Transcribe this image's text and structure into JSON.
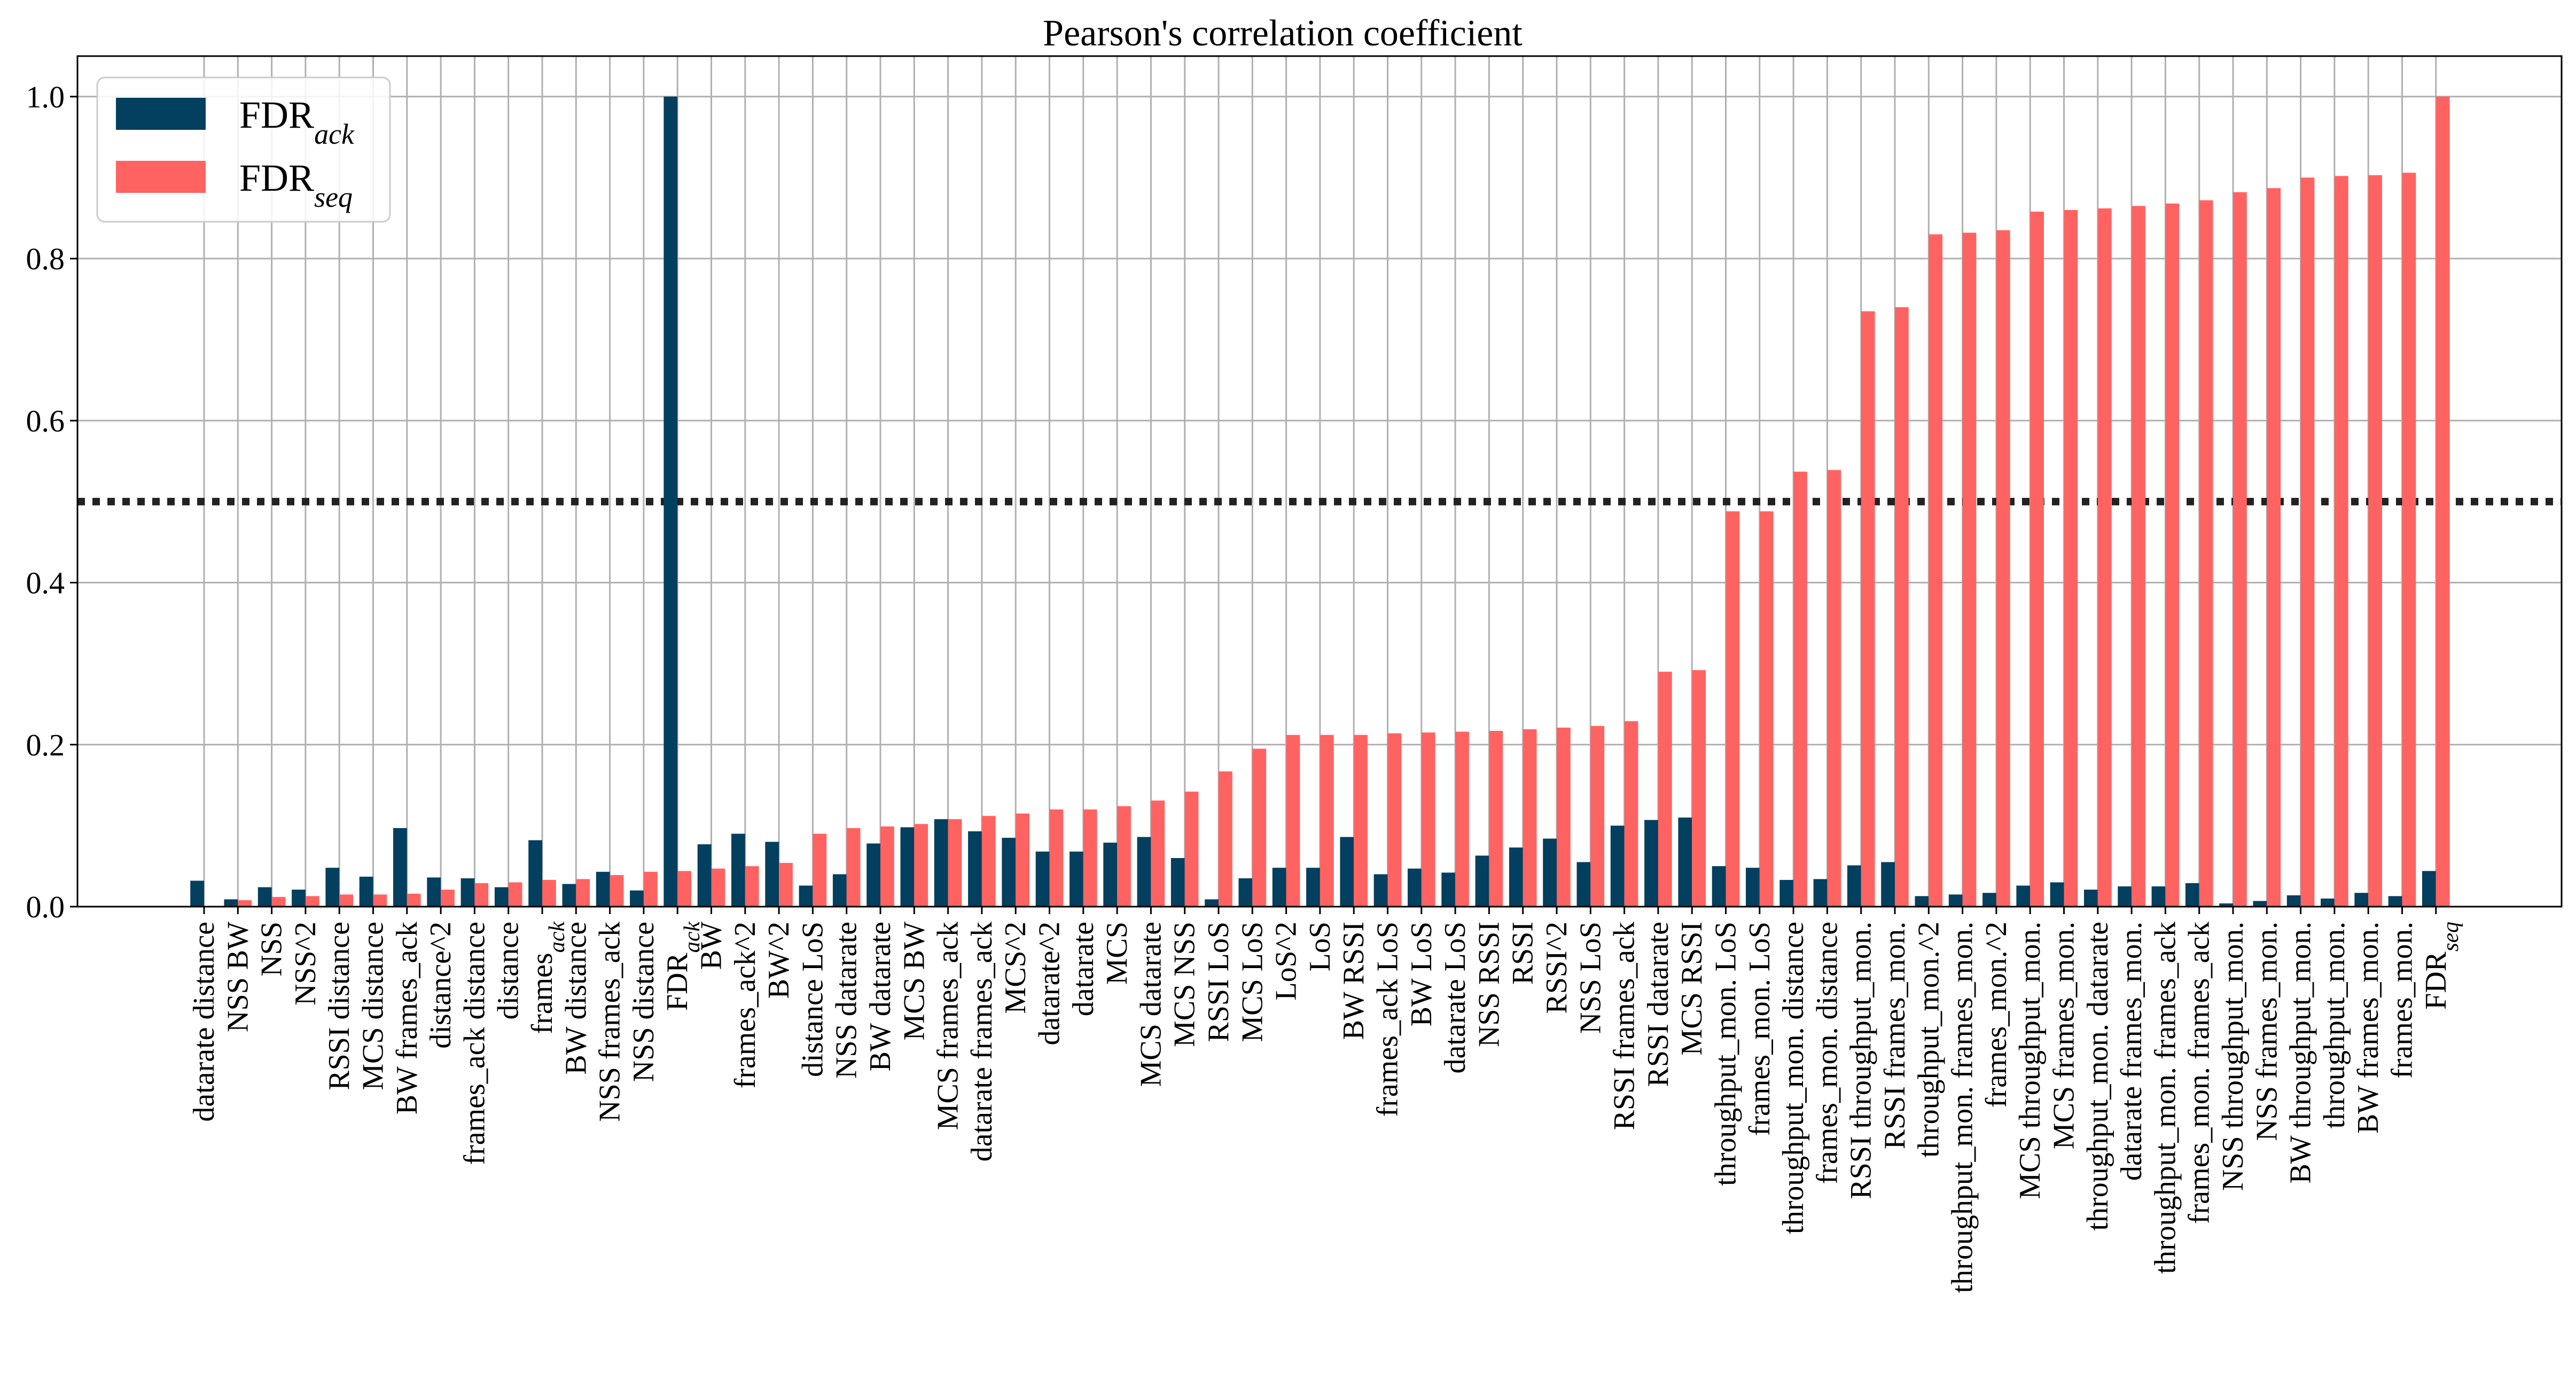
{
  "chart_data": {
    "type": "bar",
    "title": "Pearson's correlation coefficient",
    "xlabel": "",
    "ylabel": "",
    "ylim": [
      0,
      1.05
    ],
    "yticks": [
      0.0,
      0.2,
      0.4,
      0.6,
      0.8,
      1.0
    ],
    "ytick_labels": [
      "0.0",
      "0.2",
      "0.4",
      "0.6",
      "0.8",
      "1.0"
    ],
    "grid": true,
    "legend_position": "top-left",
    "threshold": 0.5,
    "colors": {
      "ack": "#033f5e",
      "seq": "#ff6361",
      "threshold": "#222222"
    },
    "categories": [
      "datarate distance",
      "NSS BW",
      "NSS",
      "NSS^2",
      "RSSI distance",
      "MCS distance",
      "BW frames_ack",
      "distance^2",
      "frames_ack distance",
      "distance",
      "frames_ack",
      "BW distance",
      "NSS frames_ack",
      "NSS distance",
      "FDR_ack",
      "BW",
      "frames_ack^2",
      "BW^2",
      "distance LoS",
      "NSS datarate",
      "BW datarate",
      "MCS BW",
      "MCS frames_ack",
      "datarate frames_ack",
      "MCS^2",
      "datarate^2",
      "datarate",
      "MCS",
      "MCS datarate",
      "MCS NSS",
      "RSSI LoS",
      "MCS LoS",
      "LoS^2",
      "LoS",
      "BW RSSI",
      "frames_ack LoS",
      "BW LoS",
      "datarate LoS",
      "NSS RSSI",
      "RSSI",
      "RSSI^2",
      "NSS LoS",
      "RSSI frames_ack",
      "RSSI datarate",
      "MCS RSSI",
      "throughput_mon. LoS",
      "frames_mon. LoS",
      "throughput_mon. distance",
      "frames_mon. distance",
      "RSSI throughput_mon.",
      "RSSI frames_mon.",
      "throughput_mon.^2",
      "throughput_mon. frames_mon.",
      "frames_mon.^2",
      "MCS throughput_mon.",
      "MCS frames_mon.",
      "throughput_mon. datarate",
      "datarate frames_mon.",
      "throughput_mon. frames_ack",
      "frames_mon. frames_ack",
      "NSS throughput_mon.",
      "NSS frames_mon.",
      "BW throughput_mon.",
      "throughput_mon.",
      "BW frames_mon.",
      "frames_mon.",
      "FDR_seq"
    ],
    "series": [
      {
        "name": "FDR_ack",
        "values": [
          0.032,
          0.009,
          0.024,
          0.021,
          0.048,
          0.037,
          0.097,
          0.036,
          0.035,
          0.024,
          0.082,
          0.028,
          0.043,
          0.02,
          1.0,
          0.077,
          0.09,
          0.08,
          0.026,
          0.04,
          0.078,
          0.098,
          0.108,
          0.093,
          0.085,
          0.068,
          0.068,
          0.079,
          0.086,
          0.06,
          0.009,
          0.035,
          0.048,
          0.048,
          0.086,
          0.04,
          0.047,
          0.042,
          0.063,
          0.073,
          0.084,
          0.055,
          0.1,
          0.107,
          0.11,
          0.05,
          0.048,
          0.033,
          0.034,
          0.051,
          0.055,
          0.013,
          0.015,
          0.017,
          0.026,
          0.03,
          0.021,
          0.025,
          0.025,
          0.029,
          0.004,
          0.007,
          0.014,
          0.01,
          0.017,
          0.013,
          0.044
        ]
      },
      {
        "name": "FDR_seq",
        "values": [
          0.0,
          0.008,
          0.012,
          0.013,
          0.015,
          0.015,
          0.016,
          0.021,
          0.029,
          0.03,
          0.033,
          0.034,
          0.039,
          0.043,
          0.044,
          0.047,
          0.05,
          0.054,
          0.09,
          0.097,
          0.099,
          0.102,
          0.108,
          0.112,
          0.115,
          0.12,
          0.12,
          0.124,
          0.131,
          0.142,
          0.167,
          0.195,
          0.212,
          0.212,
          0.212,
          0.214,
          0.215,
          0.216,
          0.217,
          0.219,
          0.221,
          0.223,
          0.229,
          0.29,
          0.292,
          0.488,
          0.488,
          0.537,
          0.539,
          0.735,
          0.74,
          0.83,
          0.832,
          0.835,
          0.858,
          0.86,
          0.862,
          0.865,
          0.868,
          0.872,
          0.882,
          0.887,
          0.9,
          0.902,
          0.903,
          0.906,
          1.0
        ]
      }
    ],
    "legend": [
      {
        "base": "FDR",
        "sub": "ack"
      },
      {
        "base": "FDR",
        "sub": "seq"
      }
    ]
  }
}
